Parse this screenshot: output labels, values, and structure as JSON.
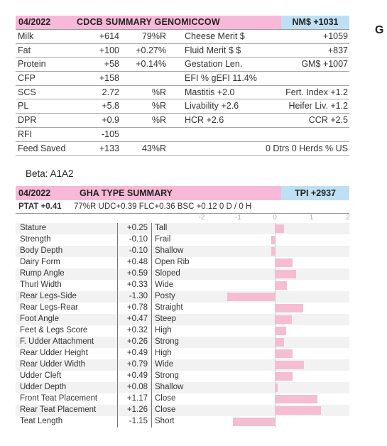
{
  "side_letter": "G",
  "beta": "Beta: A1A2",
  "genomic": {
    "date": "04/2022",
    "title": "CDCB SUMMARY GENOMICCOW",
    "nm": "NM$ +1031",
    "rows": [
      {
        "label": "Milk",
        "val": "+614",
        "rel": "79%R",
        "label2": "Cheese Merit $",
        "val2": "+1059"
      },
      {
        "label": "Fat",
        "val": "+100",
        "rel": "+0.27%",
        "label2": "Fluid Merit $ $",
        "val2": "+837"
      },
      {
        "label": "Protein",
        "val": "+58",
        "rel": "+0.14%",
        "label2": "Gestation Len.",
        "val2": "GM$   +1007"
      },
      {
        "label": "CFP",
        "val": "+158",
        "rel": "",
        "label2": " EFI  %     gEFI  11.4%",
        "val2": ""
      },
      {
        "label": "SCS",
        "val": "2.72",
        "rel": "%R",
        "label2": "Mastitis  +2.0",
        "val2": "Fert. Index  +1.2"
      },
      {
        "label": "PL",
        "val": "+5.8",
        "rel": "%R",
        "label2": "Livability  +2.6",
        "val2": "Heifer Liv.  +1.2"
      },
      {
        "label": "DPR",
        "val": "+0.9",
        "rel": "%R",
        "label2": "HCR  +2.6",
        "val2": "CCR  +2.5    "
      },
      {
        "label": "RFI",
        "val": "-105",
        "rel": "",
        "label2": "",
        "val2": ""
      },
      {
        "label": "Feed Saved",
        "val": "+133",
        "rel": "43%R",
        "label2": "",
        "val2": "0 Dtrs  0 Herds  % US"
      }
    ]
  },
  "type": {
    "date": "04/2022",
    "title": "GHA TYPE SUMMARY",
    "tpi": "TPI +2937",
    "ptat_label": "PTAT +0.41",
    "ptat_rest": "77%R  UDC+0.39  FLC+0.36  BSC +0.12  0 D /  0 H",
    "axis_ticks": [
      "-2",
      "-1",
      "0",
      "1",
      "2"
    ],
    "traits": [
      {
        "name": "Stature",
        "value": "+0.25",
        "desc": "Tall"
      },
      {
        "name": "Strength",
        "value": "-0.10",
        "desc": "Frail"
      },
      {
        "name": "Body Depth",
        "value": "-0.10",
        "desc": "Shallow"
      },
      {
        "name": "Dairy Form",
        "value": "+0.48",
        "desc": "Open Rib"
      },
      {
        "name": "Rump Angle",
        "value": "+0.59",
        "desc": "Sloped"
      },
      {
        "name": "Thurl Width",
        "value": "+0.33",
        "desc": "Wide"
      },
      {
        "name": "Rear Legs-Side",
        "value": "-1.30",
        "desc": "Posty"
      },
      {
        "name": "Rear Legs-Rear",
        "value": "+0.78",
        "desc": "Straight"
      },
      {
        "name": "Foot Angle",
        "value": "+0.47",
        "desc": "Steep"
      },
      {
        "name": "Feet & Legs Score",
        "value": "+0.32",
        "desc": "High"
      },
      {
        "name": "F. Udder Attachment",
        "value": "+0.26",
        "desc": "Strong"
      },
      {
        "name": "Rear Udder Height",
        "value": "+0.49",
        "desc": "High"
      },
      {
        "name": "Rear Udder Width",
        "value": "+0.79",
        "desc": "Wide"
      },
      {
        "name": "Udder Cleft",
        "value": "+0.49",
        "desc": "Strong"
      },
      {
        "name": "Udder Depth",
        "value": "+0.08",
        "desc": "Shallow"
      },
      {
        "name": "Front Teat Placement",
        "value": "+1.17",
        "desc": "Close"
      },
      {
        "name": "Rear Teat Placement",
        "value": "+1.26",
        "desc": "Close"
      },
      {
        "name": "Teat Length",
        "value": "-1.15",
        "desc": "Short"
      }
    ]
  },
  "chart_data": {
    "type": "bar",
    "orientation": "horizontal",
    "categories": [
      "Stature",
      "Strength",
      "Body Depth",
      "Dairy Form",
      "Rump Angle",
      "Thurl Width",
      "Rear Legs-Side",
      "Rear Legs-Rear",
      "Foot Angle",
      "Feet & Legs Score",
      "F. Udder Attachment",
      "Rear Udder Height",
      "Rear Udder Width",
      "Udder Cleft",
      "Udder Depth",
      "Front Teat Placement",
      "Rear Teat Placement",
      "Teat Length"
    ],
    "values": [
      0.25,
      -0.1,
      -0.1,
      0.48,
      0.59,
      0.33,
      -1.3,
      0.78,
      0.47,
      0.32,
      0.26,
      0.49,
      0.79,
      0.49,
      0.08,
      1.17,
      1.26,
      -1.15
    ],
    "xlim": [
      -2,
      2
    ],
    "bar_color": "#f5bdd2"
  }
}
